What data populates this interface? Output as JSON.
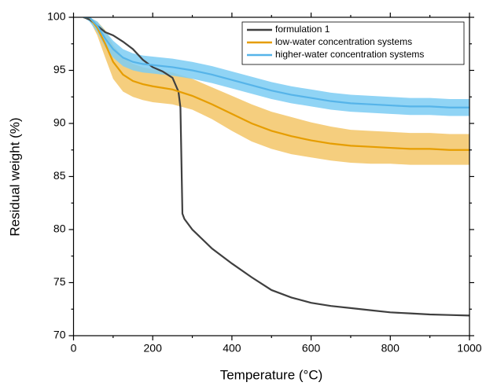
{
  "chart_data": {
    "type": "line",
    "xlabel": "Temperature (°C)",
    "ylabel": "Residual weight (%)",
    "xlim": [
      0,
      1000
    ],
    "ylim": [
      70,
      100
    ],
    "xticks": [
      0,
      200,
      400,
      600,
      800,
      1000
    ],
    "yticks": [
      70,
      75,
      80,
      85,
      90,
      95,
      100
    ],
    "xminorticks": [
      100,
      300,
      500,
      700,
      900
    ],
    "yminorticks": [
      72.5,
      77.5,
      82.5,
      87.5,
      92.5,
      97.5
    ],
    "legend": "top-right",
    "series": [
      {
        "name": "formulation 1",
        "color": "#3f3f3f",
        "x": [
          25,
          40,
          60,
          80,
          100,
          125,
          150,
          175,
          200,
          225,
          250,
          265,
          270,
          275,
          280,
          300,
          350,
          400,
          450,
          500,
          550,
          600,
          650,
          700,
          750,
          800,
          850,
          900,
          950,
          1000
        ],
        "values": [
          100,
          99.8,
          99.2,
          98.6,
          98.3,
          97.7,
          97.0,
          96.0,
          95.3,
          94.9,
          94.3,
          93.0,
          91.5,
          81.5,
          81.0,
          80.0,
          78.2,
          76.8,
          75.5,
          74.3,
          73.6,
          73.1,
          72.8,
          72.6,
          72.4,
          72.2,
          72.1,
          72.0,
          71.95,
          71.9
        ]
      },
      {
        "name": "low-water concentration systems",
        "color": "#e69d00",
        "band_color": "#f3c567",
        "x": [
          25,
          40,
          60,
          80,
          100,
          125,
          150,
          175,
          200,
          250,
          300,
          350,
          400,
          450,
          500,
          550,
          600,
          650,
          700,
          750,
          800,
          850,
          900,
          950,
          1000
        ],
        "values": [
          100,
          100,
          99,
          97.5,
          95.8,
          94.6,
          94.0,
          93.7,
          93.5,
          93.2,
          92.6,
          91.8,
          90.9,
          90.0,
          89.3,
          88.8,
          88.4,
          88.1,
          87.9,
          87.8,
          87.7,
          87.6,
          87.6,
          87.5,
          87.5
        ],
        "lower": [
          100,
          99.8,
          98.3,
          96.2,
          94.2,
          93.0,
          92.5,
          92.2,
          92.0,
          91.8,
          91.3,
          90.4,
          89.3,
          88.3,
          87.6,
          87.1,
          86.8,
          86.5,
          86.3,
          86.2,
          86.2,
          86.1,
          86.1,
          86.1,
          86.1
        ],
        "upper": [
          100,
          100,
          99.6,
          98.8,
          97.4,
          96.2,
          95.6,
          95.3,
          95.1,
          94.8,
          94.2,
          93.4,
          92.6,
          91.8,
          91.1,
          90.6,
          90.1,
          89.7,
          89.4,
          89.3,
          89.2,
          89.1,
          89.1,
          89.0,
          89.0
        ]
      },
      {
        "name": "higher-water concentration systems",
        "color": "#56b4e9",
        "band_color": "#7dccf3",
        "x": [
          25,
          40,
          60,
          80,
          100,
          125,
          150,
          175,
          200,
          250,
          300,
          350,
          400,
          450,
          500,
          550,
          600,
          650,
          700,
          750,
          800,
          850,
          900,
          950,
          1000
        ],
        "values": [
          100,
          100,
          99.2,
          98,
          97,
          96.2,
          95.8,
          95.6,
          95.5,
          95.3,
          95.0,
          94.6,
          94.1,
          93.6,
          93.1,
          92.7,
          92.4,
          92.1,
          91.9,
          91.8,
          91.7,
          91.6,
          91.6,
          91.5,
          91.5
        ],
        "lower": [
          100,
          99.6,
          98.6,
          97.2,
          96.2,
          95.4,
          95.0,
          94.8,
          94.7,
          94.5,
          94.2,
          93.8,
          93.3,
          92.8,
          92.3,
          91.9,
          91.6,
          91.3,
          91.1,
          91.0,
          90.9,
          90.8,
          90.8,
          90.7,
          90.7
        ],
        "upper": [
          100,
          100,
          99.6,
          98.7,
          97.8,
          97.0,
          96.6,
          96.4,
          96.3,
          96.1,
          95.8,
          95.4,
          94.9,
          94.4,
          93.9,
          93.5,
          93.2,
          92.9,
          92.7,
          92.6,
          92.5,
          92.4,
          92.4,
          92.3,
          92.3
        ]
      }
    ]
  }
}
